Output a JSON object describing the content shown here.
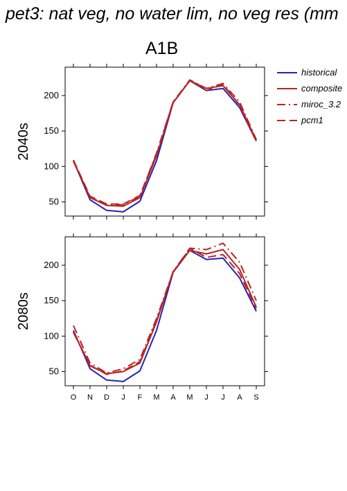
{
  "page": {
    "title": "pet3: nat veg, no water lim, no veg res (mm",
    "scenario": "A1B"
  },
  "colors": {
    "historical": "#2222bb",
    "composite": "#bb2222",
    "miroc_3.2": "#bb2222",
    "pcm1": "#bb2222"
  },
  "chart_data": [
    {
      "type": "line",
      "panel": "2040s",
      "x": [
        "O",
        "N",
        "D",
        "J",
        "F",
        "M",
        "A",
        "M",
        "J",
        "J",
        "A",
        "S"
      ],
      "ylim": [
        30,
        240
      ],
      "yticks": [
        50,
        100,
        150,
        200
      ],
      "series": [
        {
          "name": "historical",
          "style": "solid",
          "values": [
            108,
            53,
            38,
            36,
            51,
            108,
            190,
            221,
            207,
            210,
            183,
            136
          ]
        },
        {
          "name": "composite",
          "style": "solid",
          "values": [
            108,
            56,
            45,
            44,
            56,
            115,
            190,
            221,
            210,
            214,
            187,
            137
          ]
        },
        {
          "name": "miroc_3.2",
          "style": "dashdot",
          "values": [
            107,
            57,
            46,
            46,
            58,
            119,
            191,
            222,
            210,
            217,
            191,
            138
          ]
        },
        {
          "name": "pcm1",
          "style": "dashed",
          "values": [
            109,
            58,
            47,
            47,
            59,
            117,
            191,
            221,
            207,
            216,
            186,
            135
          ]
        }
      ]
    },
    {
      "type": "line",
      "panel": "2080s",
      "x": [
        "O",
        "N",
        "D",
        "J",
        "F",
        "M",
        "A",
        "M",
        "J",
        "J",
        "A",
        "S"
      ],
      "ylim": [
        30,
        240
      ],
      "yticks": [
        50,
        100,
        150,
        200
      ],
      "series": [
        {
          "name": "historical",
          "style": "solid",
          "values": [
            108,
            54,
            38,
            36,
            51,
            108,
            190,
            221,
            208,
            210,
            182,
            135
          ]
        },
        {
          "name": "composite",
          "style": "solid",
          "values": [
            106,
            58,
            47,
            50,
            62,
            120,
            191,
            221,
            216,
            222,
            194,
            141
          ]
        },
        {
          "name": "miroc_3.2",
          "style": "dashdot",
          "values": [
            115,
            62,
            48,
            54,
            67,
            125,
            191,
            224,
            222,
            231,
            204,
            150
          ]
        },
        {
          "name": "pcm1",
          "style": "dashed",
          "values": [
            105,
            59,
            46,
            51,
            64,
            122,
            190,
            224,
            211,
            215,
            188,
            139
          ]
        }
      ]
    }
  ],
  "legend": {
    "entries": [
      "historical",
      "composite",
      "miroc_3.2",
      "pcm1"
    ]
  }
}
